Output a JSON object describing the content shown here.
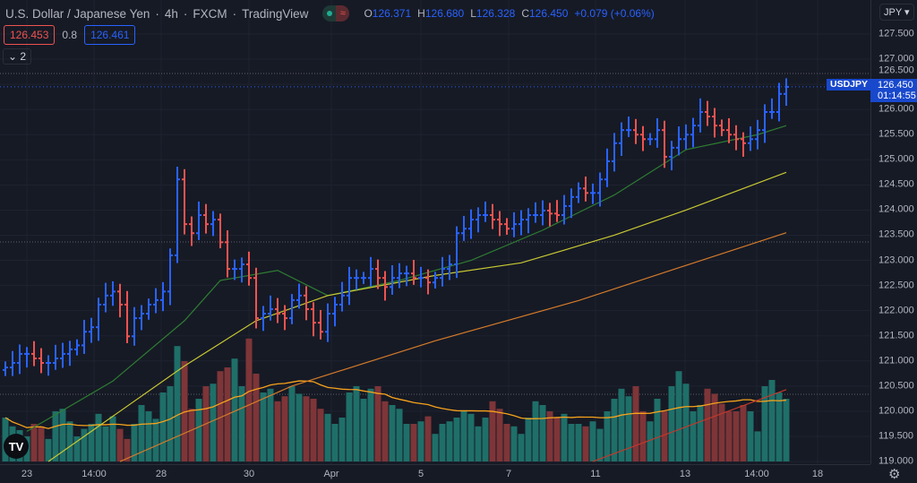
{
  "header": {
    "symbol_name": "U.S. Dollar / Japanese Yen",
    "interval": "4h",
    "exchange": "FXCM",
    "source": "TradingView",
    "separator": "·",
    "ohlc": {
      "o_label": "O",
      "o": "126.371",
      "h_label": "H",
      "h": "126.680",
      "l_label": "L",
      "l": "126.328",
      "c_label": "C",
      "c": "126.450",
      "change": "+0.079 (+0.06%)"
    }
  },
  "trade": {
    "sell": "126.453",
    "spread": "0.8",
    "buy": "126.461"
  },
  "indicators_toggle": {
    "icon": "chevron-down-icon",
    "count": "2"
  },
  "axis": {
    "currency": "JPY ▾",
    "price_labels": [
      "127.500",
      "127.000",
      "126.500",
      "126.000",
      "125.500",
      "125.000",
      "124.500",
      "124.000",
      "123.500",
      "123.000",
      "122.500",
      "122.000",
      "121.500",
      "121.000",
      "120.500",
      "120.000",
      "119.500",
      "119.000"
    ],
    "time_labels": [
      "23",
      "14:00",
      "28",
      "30",
      "Apr",
      "5",
      "7",
      "11",
      "13",
      "14:00",
      "18"
    ],
    "symbol_tag": "USDJPY",
    "last_price": "126.450",
    "countdown": "01:14:55"
  },
  "colors": {
    "up": "#2962ff",
    "down": "#ef5350",
    "vol_up": "#1f6f69",
    "vol_down": "#7e3538",
    "bg": "#161a25"
  },
  "chart_data": {
    "type": "ohlc",
    "ylim": [
      119.0,
      127.5
    ],
    "close": [
      120.87,
      120.96,
      121.14,
      121.14,
      121.05,
      120.96,
      120.96,
      121.05,
      121.14,
      121.23,
      121.31,
      121.58,
      121.67,
      122.12,
      122.3,
      122.38,
      122.12,
      121.49,
      121.85,
      121.94,
      122.12,
      122.21,
      122.38,
      123.1,
      124.61,
      123.72,
      123.54,
      123.9,
      123.72,
      123.81,
      123.36,
      122.83,
      122.83,
      122.92,
      122.65,
      121.85,
      121.94,
      122.03,
      121.94,
      121.85,
      122.21,
      122.3,
      122.03,
      121.76,
      121.58,
      121.94,
      122.12,
      122.3,
      122.65,
      122.65,
      122.65,
      122.83,
      122.65,
      122.47,
      122.65,
      122.74,
      122.74,
      122.65,
      122.65,
      122.56,
      122.65,
      122.83,
      122.92,
      123.54,
      123.63,
      123.81,
      123.9,
      123.9,
      123.81,
      123.72,
      123.63,
      123.72,
      123.81,
      123.9,
      123.9,
      123.99,
      123.93,
      123.9,
      124.08,
      124.26,
      124.43,
      124.34,
      124.34,
      124.61,
      124.97,
      125.33,
      125.59,
      125.59,
      125.5,
      125.41,
      125.41,
      125.59,
      125.06,
      125.24,
      125.41,
      125.5,
      125.68,
      125.95,
      125.86,
      125.68,
      125.59,
      125.5,
      125.41,
      125.33,
      125.41,
      125.59,
      125.95,
      125.95,
      126.31,
      126.45
    ],
    "volume": [
      35,
      28,
      25,
      20,
      30,
      28,
      18,
      40,
      42,
      32,
      20,
      26,
      30,
      38,
      28,
      36,
      26,
      18,
      30,
      45,
      40,
      34,
      55,
      60,
      92,
      80,
      42,
      50,
      60,
      62,
      72,
      75,
      82,
      60,
      98,
      70,
      55,
      58,
      48,
      52,
      60,
      54,
      52,
      50,
      42,
      38,
      30,
      35,
      55,
      60,
      50,
      58,
      60,
      48,
      45,
      42,
      30,
      30,
      32,
      36,
      22,
      30,
      32,
      35,
      40,
      38,
      28,
      35,
      48,
      42,
      30,
      28,
      22,
      35,
      48,
      45,
      40,
      35,
      38,
      30,
      30,
      28,
      32,
      26,
      40,
      50,
      58,
      52,
      60,
      40,
      32,
      50,
      40,
      60,
      72,
      62,
      40,
      45,
      58,
      54,
      46,
      40,
      40,
      45,
      40,
      24,
      60,
      65,
      55,
      50
    ],
    "moving_averages": [
      {
        "color": "#2e7d32",
        "points": [
          [
            3,
            119.6
          ],
          [
            15,
            120.6
          ],
          [
            25,
            121.8
          ],
          [
            30,
            122.6
          ],
          [
            38,
            122.8
          ],
          [
            45,
            122.3
          ],
          [
            55,
            122.6
          ],
          [
            65,
            123.0
          ],
          [
            75,
            123.6
          ],
          [
            85,
            124.3
          ],
          [
            95,
            125.2
          ],
          [
            105,
            125.5
          ],
          [
            109,
            125.68
          ]
        ]
      },
      {
        "color": "#c8c832",
        "points": [
          [
            6,
            119.0
          ],
          [
            25,
            120.9
          ],
          [
            35,
            121.8
          ],
          [
            45,
            122.3
          ],
          [
            60,
            122.7
          ],
          [
            72,
            122.95
          ],
          [
            85,
            123.5
          ],
          [
            95,
            124.0
          ],
          [
            109,
            124.75
          ]
        ]
      },
      {
        "color": "#d47a2a",
        "points": [
          [
            16,
            119.0
          ],
          [
            40,
            120.5
          ],
          [
            60,
            121.4
          ],
          [
            80,
            122.2
          ],
          [
            95,
            122.9
          ],
          [
            109,
            123.55
          ]
        ]
      },
      {
        "color": "#c0392b",
        "points": [
          [
            82,
            119.0
          ],
          [
            109,
            120.43
          ]
        ]
      }
    ]
  }
}
